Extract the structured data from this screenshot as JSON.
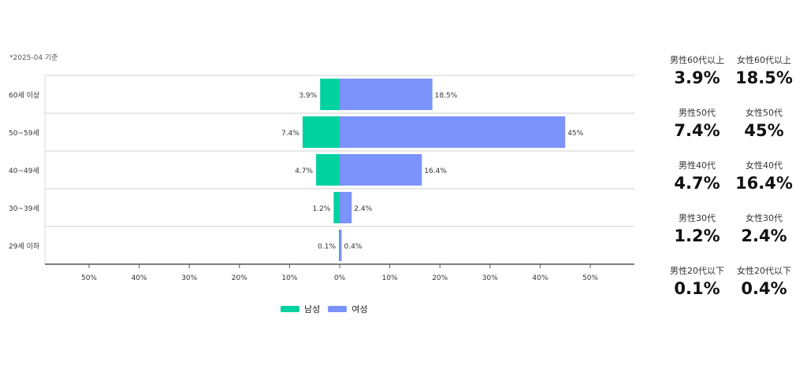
{
  "note": "*2025-04 기준",
  "chart_data": {
    "type": "bar",
    "orientation": "horizontal-diverging",
    "categories": [
      "60세 이상",
      "50~59세",
      "40~49세",
      "30~39세",
      "29세 이하"
    ],
    "series": [
      {
        "name": "남성",
        "color": "#00d2a0",
        "values": [
          3.9,
          7.4,
          4.7,
          1.2,
          0.1
        ],
        "labels": [
          "3.9%",
          "7.4%",
          "4.7%",
          "1.2%",
          "0.1%"
        ]
      },
      {
        "name": "여성",
        "color": "#7b93fb",
        "values": [
          18.5,
          45,
          16.4,
          2.4,
          0.4
        ],
        "labels": [
          "18.5%",
          "45%",
          "16.4%",
          "2.4%",
          "0.4%"
        ]
      }
    ],
    "xlim": [
      -50,
      50
    ],
    "x_ticks": [
      -50,
      -40,
      -30,
      -20,
      -10,
      0,
      10,
      20,
      30,
      40,
      50
    ],
    "x_tick_labels": [
      "50%",
      "40%",
      "30%",
      "20%",
      "10%",
      "0%",
      "10%",
      "20%",
      "30%",
      "40%",
      "50%"
    ],
    "grid": "horizontal row separators",
    "legend": "bottom"
  },
  "legend": {
    "male": "남성",
    "female": "여성"
  },
  "stats": [
    {
      "male_label": "男性60代以上",
      "male_value": "3.9%",
      "female_label": "女性60代以上",
      "female_value": "18.5%"
    },
    {
      "male_label": "男性50代",
      "male_value": "7.4%",
      "female_label": "女性50代",
      "female_value": "45%"
    },
    {
      "male_label": "男性40代",
      "male_value": "4.7%",
      "female_label": "女性40代",
      "female_value": "16.4%"
    },
    {
      "male_label": "男性30代",
      "male_value": "1.2%",
      "female_label": "女性30代",
      "female_value": "2.4%"
    },
    {
      "male_label": "男性20代以下",
      "male_value": "0.1%",
      "female_label": "女性20代以下",
      "female_value": "0.4%"
    }
  ]
}
